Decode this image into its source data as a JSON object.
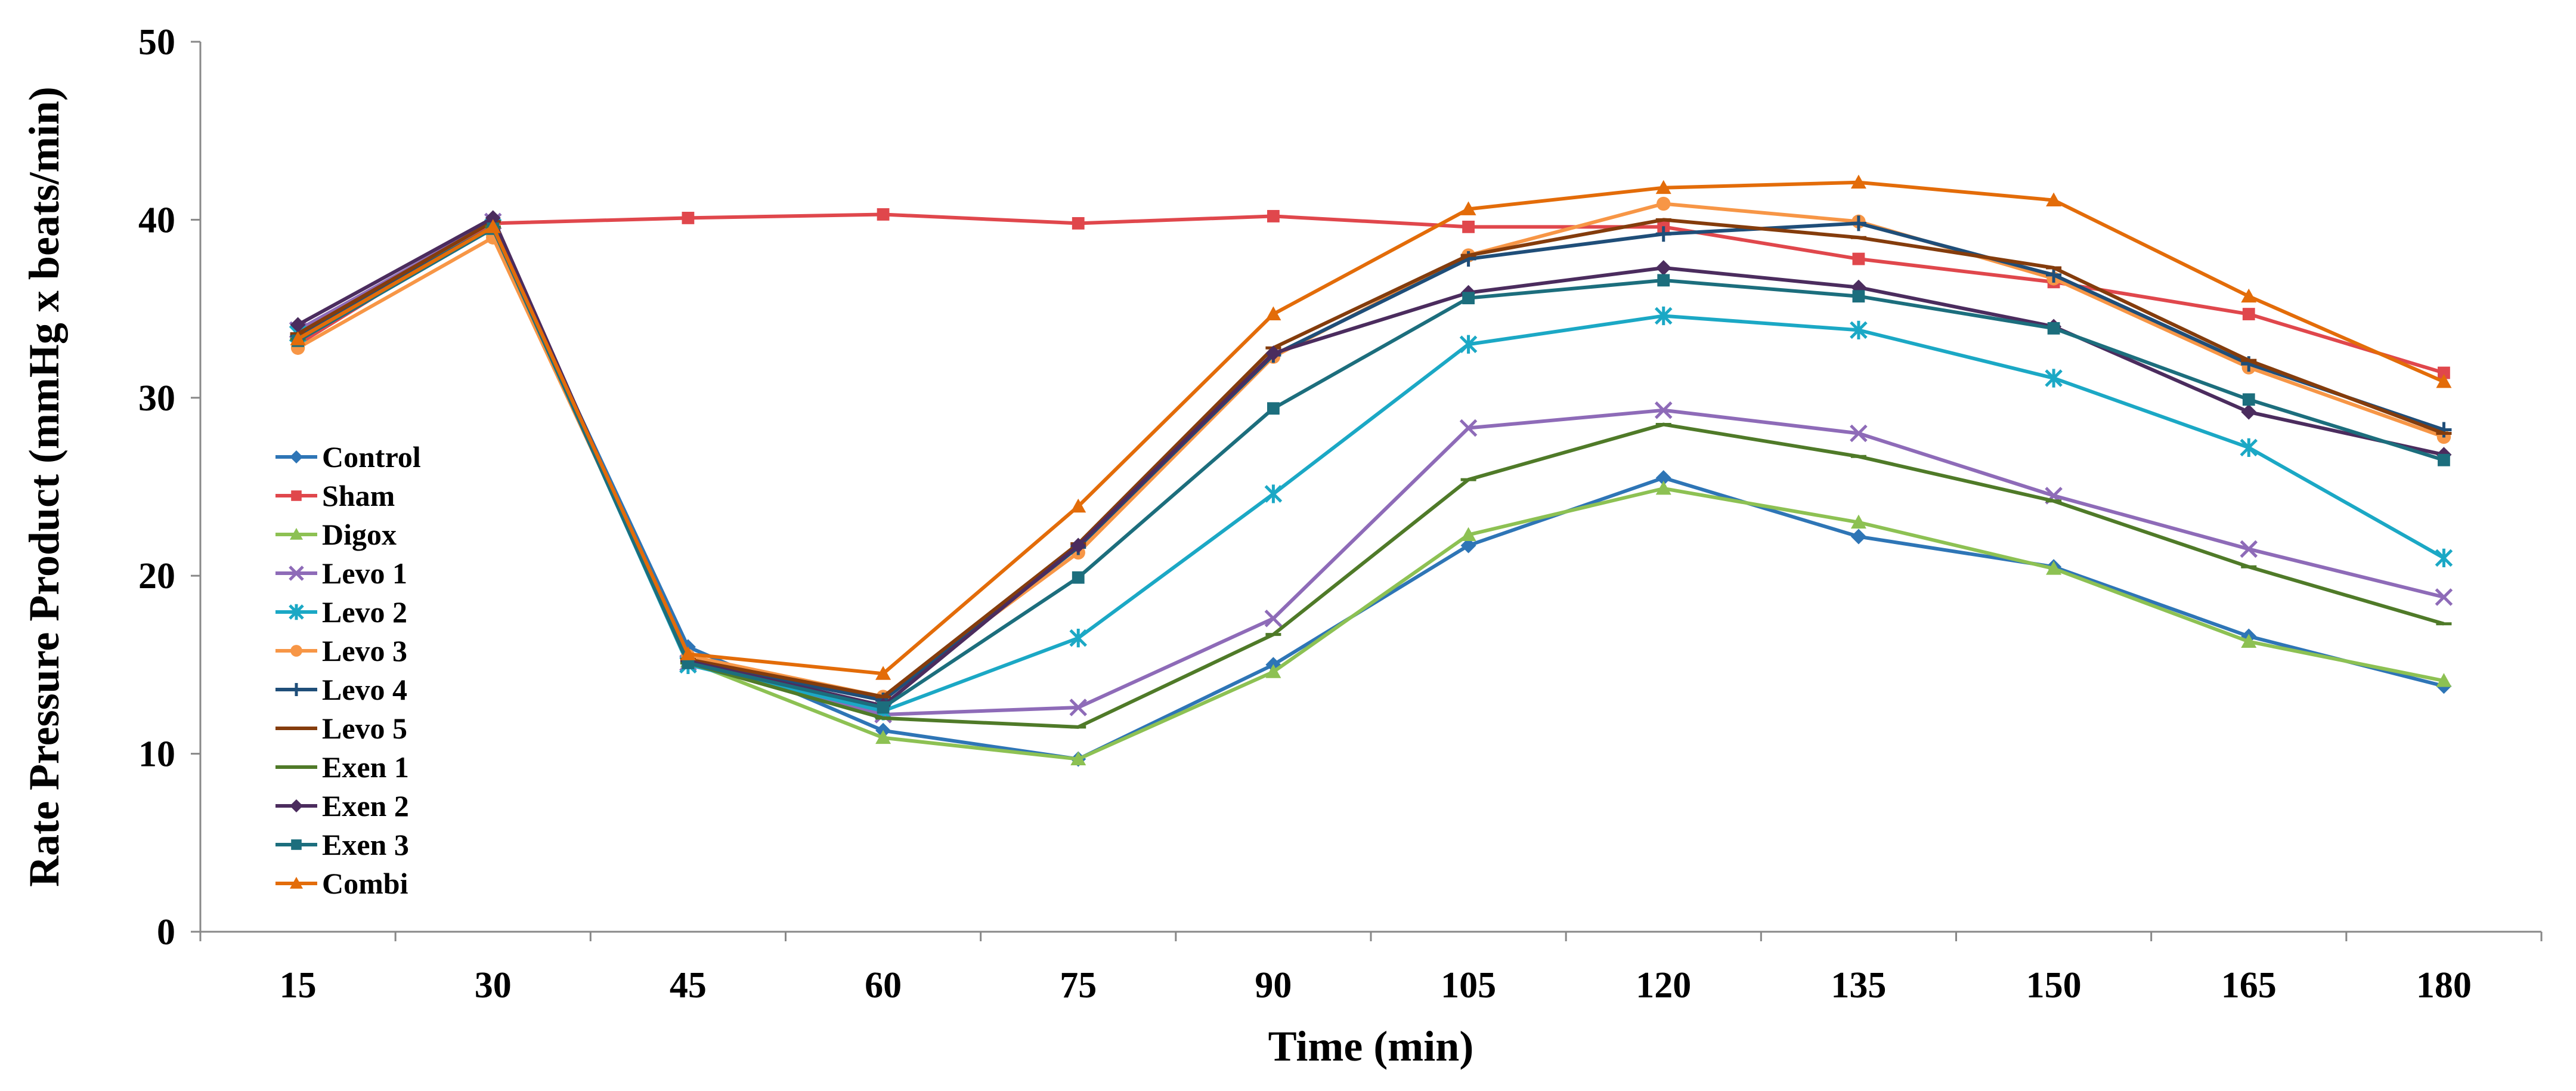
{
  "chart_data": {
    "type": "line",
    "title": "",
    "xlabel": "Time (min)",
    "ylabel": "Rate Pressure Product (mmHg x beats/min)",
    "categories": [
      "15",
      "30",
      "45",
      "60",
      "75",
      "90",
      "105",
      "120",
      "135",
      "150",
      "165",
      "180"
    ],
    "ylim": [
      0,
      50
    ],
    "yticks": [
      0,
      10,
      20,
      30,
      40,
      50
    ],
    "grid": false,
    "legend_position": "left",
    "series": [
      {
        "name": "Control",
        "color": "#2e75b6",
        "marker": "diamond",
        "values": [
          33.5,
          39.5,
          16.0,
          11.3,
          9.7,
          15.0,
          21.7,
          25.5,
          22.2,
          20.5,
          16.6,
          13.8
        ]
      },
      {
        "name": "Sham",
        "color": "#e0474c",
        "marker": "square",
        "values": [
          33.0,
          39.8,
          40.1,
          40.3,
          39.8,
          40.2,
          39.6,
          39.6,
          37.8,
          36.5,
          34.7,
          31.4
        ]
      },
      {
        "name": "Digox",
        "color": "#8dc153",
        "marker": "triangle",
        "values": [
          33.5,
          39.5,
          15.2,
          10.9,
          9.7,
          14.6,
          22.3,
          24.9,
          23.0,
          20.4,
          16.3,
          14.1
        ]
      },
      {
        "name": "Levo 1",
        "color": "#8e6bb8",
        "marker": "x",
        "values": [
          33.8,
          39.9,
          15.1,
          12.2,
          12.6,
          17.6,
          28.3,
          29.3,
          28.0,
          24.5,
          21.5,
          18.8
        ]
      },
      {
        "name": "Levo 2",
        "color": "#1ba8c5",
        "marker": "star",
        "values": [
          33.6,
          39.6,
          15.0,
          12.4,
          16.5,
          24.6,
          33.0,
          34.6,
          33.8,
          31.1,
          27.2,
          21.0
        ]
      },
      {
        "name": "Levo 3",
        "color": "#f79646",
        "marker": "circle",
        "values": [
          32.8,
          39.0,
          15.5,
          13.2,
          21.3,
          32.3,
          38.0,
          40.9,
          39.9,
          36.7,
          31.7,
          27.8
        ]
      },
      {
        "name": "Levo 4",
        "color": "#1f4e79",
        "marker": "plus",
        "values": [
          33.5,
          39.6,
          15.2,
          13.0,
          21.6,
          32.4,
          37.8,
          39.2,
          39.8,
          36.9,
          31.9,
          28.2
        ]
      },
      {
        "name": "Levo 5",
        "color": "#843c0c",
        "marker": "dash",
        "values": [
          33.6,
          39.9,
          15.3,
          13.2,
          21.8,
          32.8,
          38.0,
          40.0,
          39.0,
          37.3,
          32.1,
          28.0
        ]
      },
      {
        "name": "Exen 1",
        "color": "#4f7a28",
        "marker": "dash",
        "values": [
          33.3,
          39.6,
          15.1,
          12.0,
          11.5,
          16.7,
          25.4,
          28.5,
          26.7,
          24.2,
          20.5,
          17.3
        ]
      },
      {
        "name": "Exen 2",
        "color": "#4b2c5e",
        "marker": "diamond",
        "values": [
          34.1,
          40.1,
          15.2,
          12.7,
          21.7,
          32.5,
          35.9,
          37.3,
          36.2,
          34.0,
          29.2,
          26.8
        ]
      },
      {
        "name": "Exen 3",
        "color": "#1c6e7d",
        "marker": "square",
        "values": [
          33.2,
          39.5,
          15.1,
          12.6,
          19.9,
          29.4,
          35.6,
          36.6,
          35.7,
          33.9,
          29.9,
          26.5
        ]
      },
      {
        "name": "Combi",
        "color": "#e36c09",
        "marker": "triangle",
        "values": [
          33.3,
          39.6,
          15.6,
          14.5,
          23.9,
          34.7,
          40.6,
          41.8,
          42.1,
          41.1,
          35.7,
          30.9
        ]
      }
    ]
  }
}
